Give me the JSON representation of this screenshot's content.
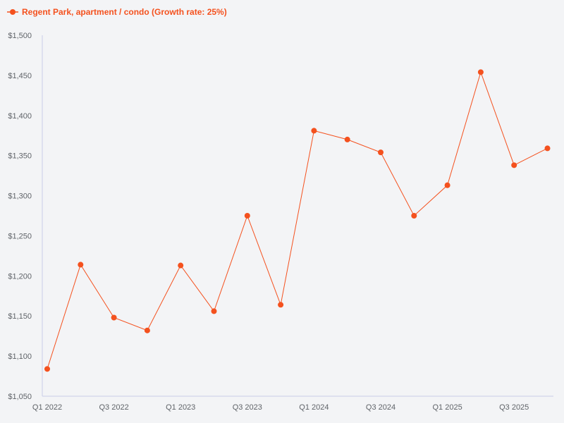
{
  "colors": {
    "series": "#f4511e",
    "axis": "#c9cde8",
    "tick_text": "#5f6368",
    "background": "#f3f4f6"
  },
  "legend": {
    "label": "Regent Park, apartment / condo (Growth rate: 25%)",
    "position": "top-left",
    "marker": "line-with-dot"
  },
  "chart_data": {
    "type": "line",
    "x": [
      "Q1 2022",
      "Q2 2022",
      "Q3 2022",
      "Q4 2022",
      "Q1 2023",
      "Q2 2023",
      "Q3 2023",
      "Q4 2023",
      "Q1 2024",
      "Q2 2024",
      "Q3 2024",
      "Q4 2024",
      "Q1 2025",
      "Q2 2025",
      "Q3 2025",
      "Q4 2025"
    ],
    "x_tick_labels": [
      "Q1 2022",
      "Q3 2022",
      "Q1 2023",
      "Q3 2023",
      "Q1 2024",
      "Q3 2024",
      "Q1 2025",
      "Q3 2025"
    ],
    "series": [
      {
        "name": "Regent Park, apartment / condo (Growth rate: 25%)",
        "values": [
          1084,
          1214,
          1148,
          1132,
          1213,
          1156,
          1275,
          1164,
          1381,
          1370,
          1354,
          1275,
          1313,
          1454,
          1338,
          1359
        ]
      }
    ],
    "y_tick_labels": [
      "$1,050",
      "$1,100",
      "$1,150",
      "$1,200",
      "$1,250",
      "$1,300",
      "$1,350",
      "$1,400",
      "$1,450",
      "$1,500"
    ],
    "ylim": [
      1050,
      1500
    ],
    "title": "",
    "xlabel": "",
    "ylabel": "",
    "grid": false
  }
}
